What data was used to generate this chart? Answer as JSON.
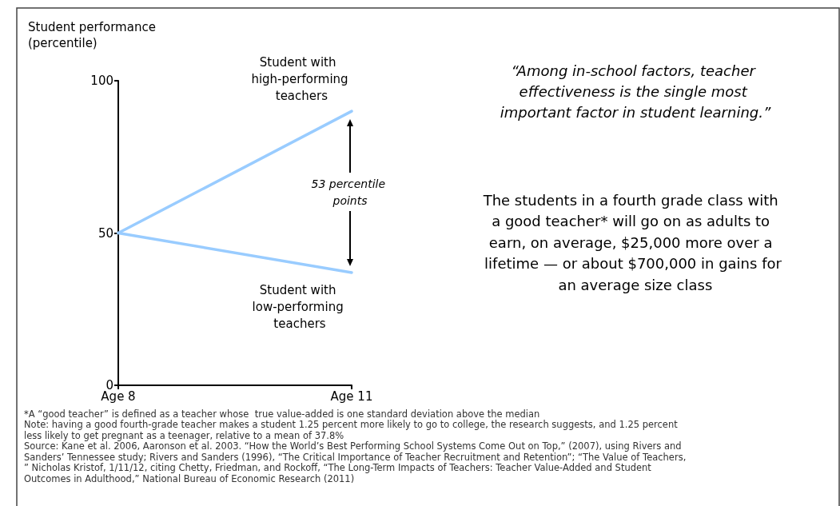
{
  "chart_data": {
    "type": "line",
    "ylabel": "Student performance (percentile)",
    "categories": [
      "Age 8",
      "Age 11"
    ],
    "series": [
      {
        "name": "Student with high-performing teachers",
        "color": "#99ccff",
        "values": [
          50,
          90
        ]
      },
      {
        "name": "Student with low-performing teachers",
        "color": "#99ccff",
        "values": [
          50,
          37
        ]
      }
    ],
    "ylim": [
      0,
      100
    ],
    "yticks": [
      0,
      50,
      100
    ],
    "grid": false,
    "legend": false,
    "annotations": [
      "53 percentile points",
      "“Among in-school factors, teacher effectiveness is the single most important factor in student learning.”",
      "The students in a fourth grade class with a good teacher* will go on as adults to earn, on average, $25,000 more over a lifetime — or about $700,000 in gains for an average size class",
      "*A “good teacher” is defined as a teacher whose  true value-added is one standard deviation above the median",
      "Note: having a good fourth-grade teacher makes a student 1.25 percent more likely to go to college, the research suggests, and 1.25 percent less likely to get pregnant as a teenager, relative to a mean of 37.8%",
      "Source: Kane et al. 2006, Aaronson et al. 2003. “How the World’s Best Performing School Systems Come Out on Top,” (2007), using Rivers and Sanders’ Tennessee study; Rivers and Sanders (1996), “The Critical Importance of Teacher Recruitment and Retention”; “The Value of Teachers,” Nicholas Kristof, 1/11/12, citing Chetty, Friedman, and Rockoff, “The Long-Term Impacts of Teachers: Teacher Value-Added and Student Outcomes in Adulthood,” National Bureau of Economic Research (2011)"
    ]
  }
}
